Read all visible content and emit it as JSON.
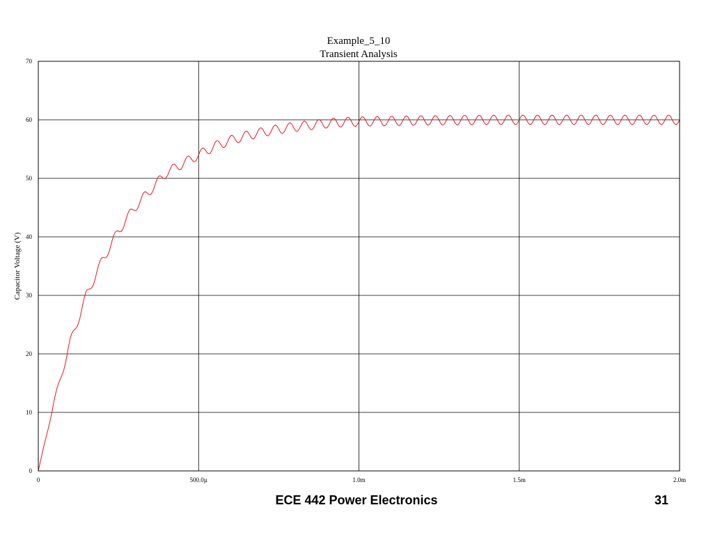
{
  "chart_data": {
    "type": "line",
    "title": "Example_5_10",
    "subtitle": "Transient Analysis",
    "xlabel": "",
    "ylabel": "Capacitor Voltage (V)",
    "xlim": [
      0,
      0.002
    ],
    "ylim": [
      0,
      70
    ],
    "x_ticks": [
      {
        "value": 0,
        "label": "0"
      },
      {
        "value": 0.0005,
        "label": "500.0µ"
      },
      {
        "value": 0.001,
        "label": "1.0m"
      },
      {
        "value": 0.0015,
        "label": "1.5m"
      },
      {
        "value": 0.002,
        "label": "2.0m"
      }
    ],
    "y_ticks": [
      {
        "value": 0,
        "label": "0"
      },
      {
        "value": 10,
        "label": "10"
      },
      {
        "value": 20,
        "label": "20"
      },
      {
        "value": 30,
        "label": "30"
      },
      {
        "value": 40,
        "label": "40"
      },
      {
        "value": 50,
        "label": "50"
      },
      {
        "value": 60,
        "label": "60"
      },
      {
        "value": 70,
        "label": "70"
      }
    ],
    "grid": true,
    "series": [
      {
        "color": "#e8141e",
        "x": [
          0,
          5e-05,
          0.0001,
          0.00015,
          0.0002,
          0.00025,
          0.0003,
          0.00035,
          0.0004,
          0.00045,
          0.0005,
          0.00055,
          0.0006,
          0.00065,
          0.0007,
          0.00075,
          0.0008,
          0.00085,
          0.0009,
          0.00095,
          0.001,
          0.0012,
          0.0014,
          0.0016,
          0.0018,
          0.002
        ],
        "y": [
          0,
          12,
          22,
          30,
          36,
          41,
          45,
          48,
          51,
          52.5,
          54,
          55.5,
          56.5,
          57.3,
          57.9,
          58.4,
          58.8,
          59.1,
          59.4,
          59.6,
          59.7,
          59.9,
          60.0,
          60.0,
          60.0,
          60.0
        ],
        "ripple_amplitude": 0.8,
        "ripple_cycles": 44
      }
    ]
  },
  "footer": {
    "course": "ECE 442 Power Electronics",
    "page_number": "31"
  }
}
